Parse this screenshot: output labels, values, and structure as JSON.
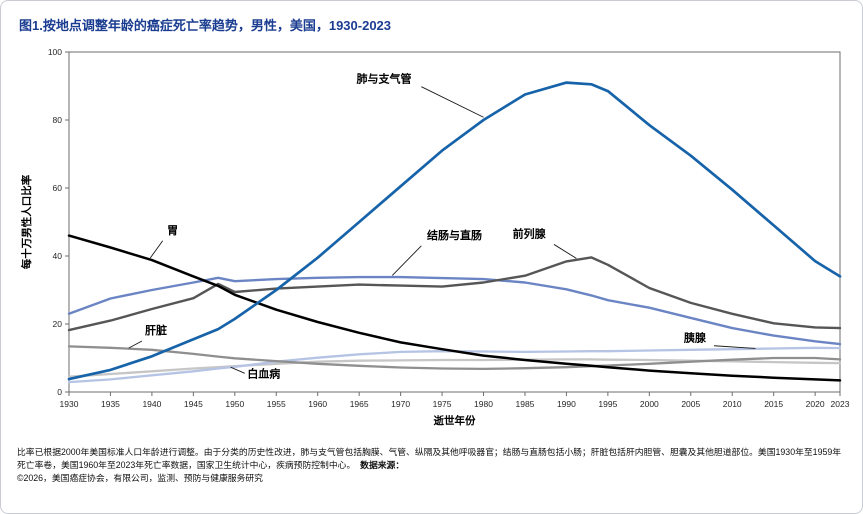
{
  "figure": {
    "title": "图1.按地点调整年龄的癌症死亡率趋势，男性，美国，1930-2023",
    "title_color": "#1b3d91"
  },
  "chart_data": {
    "type": "line",
    "title": "图1.按地点调整年龄的癌症死亡率趋势，男性，美国，1930-2023",
    "xlabel": "逝世年份",
    "ylabel": "每十万男性人口比率",
    "xlim": [
      1930,
      2023
    ],
    "ylim": [
      0,
      100
    ],
    "xticks": [
      1930,
      1935,
      1940,
      1945,
      1950,
      1955,
      1960,
      1965,
      1970,
      1975,
      1980,
      1985,
      1990,
      1995,
      2000,
      2005,
      2010,
      2015,
      2020,
      2023
    ],
    "yticks": [
      0,
      20,
      40,
      60,
      80,
      100
    ],
    "grid": false,
    "legend_position": "inline-annotations",
    "x": [
      1930,
      1935,
      1940,
      1945,
      1948,
      1950,
      1955,
      1960,
      1965,
      1970,
      1975,
      1980,
      1985,
      1990,
      1993,
      1995,
      2000,
      2005,
      2010,
      2015,
      2020,
      2023
    ],
    "series": [
      {
        "key": "leukemia",
        "name": "白血病",
        "color": "#c6c6c6",
        "width": 2.3,
        "values": [
          4.5,
          5.3,
          6.1,
          6.9,
          7.3,
          7.6,
          8.3,
          8.9,
          9.2,
          9.3,
          9.4,
          9.4,
          9.5,
          9.6,
          9.6,
          9.5,
          9.4,
          9.2,
          9.0,
          8.8,
          8.6,
          8.5
        ]
      },
      {
        "key": "pancreas",
        "name": "胰腺",
        "color": "#b5c4e4",
        "width": 2.3,
        "values": [
          2.9,
          3.7,
          4.9,
          6.1,
          6.9,
          7.4,
          8.9,
          10.1,
          11.1,
          11.8,
          12.0,
          11.9,
          11.8,
          11.9,
          12.0,
          12.0,
          12.2,
          12.4,
          12.6,
          12.8,
          13.0,
          12.9
        ]
      },
      {
        "key": "liver",
        "name": "肝脏",
        "color": "#8f8f8f",
        "width": 2.3,
        "values": [
          13.4,
          13.0,
          12.4,
          11.2,
          10.4,
          9.9,
          9.1,
          8.3,
          7.7,
          7.2,
          6.9,
          6.8,
          7.0,
          7.3,
          7.6,
          7.8,
          8.3,
          8.9,
          9.5,
          10.0,
          10.0,
          9.6
        ]
      },
      {
        "key": "colorectal",
        "name": "结肠与直肠",
        "color": "#6b85c4",
        "width": 2.4,
        "values": [
          23.0,
          27.5,
          30.0,
          32.2,
          33.6,
          32.6,
          33.2,
          33.6,
          33.8,
          33.8,
          33.5,
          33.2,
          32.2,
          30.2,
          28.4,
          27.0,
          24.8,
          21.8,
          18.8,
          16.6,
          14.9,
          14.1
        ]
      },
      {
        "key": "prostate",
        "name": "前列腺",
        "color": "#565656",
        "width": 2.4,
        "values": [
          18.2,
          21.0,
          24.4,
          27.6,
          31.8,
          29.4,
          30.4,
          31.0,
          31.6,
          31.3,
          31.0,
          32.2,
          34.2,
          38.4,
          39.6,
          37.4,
          30.6,
          26.2,
          23.0,
          20.2,
          19.0,
          18.8
        ]
      },
      {
        "key": "stomach",
        "name": "胃",
        "color": "#000000",
        "width": 2.5,
        "values": [
          46.0,
          42.5,
          38.8,
          34.0,
          31.2,
          28.6,
          24.2,
          20.6,
          17.4,
          14.6,
          12.6,
          10.7,
          9.4,
          8.3,
          7.7,
          7.3,
          6.3,
          5.5,
          4.8,
          4.2,
          3.7,
          3.4
        ]
      },
      {
        "key": "lung",
        "name": "肺与支气管",
        "color": "#1663a9",
        "width": 2.7,
        "values": [
          3.8,
          6.5,
          10.5,
          15.5,
          18.5,
          21.5,
          30.0,
          39.5,
          50.0,
          60.5,
          71.0,
          80.0,
          87.5,
          91.0,
          90.5,
          88.5,
          78.5,
          69.5,
          59.5,
          49.0,
          38.5,
          34.0
        ]
      }
    ],
    "annotations": [
      {
        "key": "lung",
        "text": "肺与支气管",
        "pos": [
          1968,
          91
        ],
        "leader": [
          1972.5,
          89.8,
          1980,
          80.8
        ]
      },
      {
        "key": "stomach",
        "text": "胃",
        "pos": [
          1942.5,
          46.5
        ],
        "leader": [
          1941.3,
          44.5,
          1939.8,
          39.4
        ]
      },
      {
        "key": "colorectal",
        "text": "结肠与直肠",
        "pos": [
          1976.5,
          45
        ],
        "leader": [
          1972.5,
          43,
          1969,
          34.3
        ]
      },
      {
        "key": "prostate",
        "text": "前列腺",
        "pos": [
          1985.5,
          45.5
        ],
        "leader": [
          1988.5,
          43.4,
          1991.2,
          39.3
        ]
      },
      {
        "key": "liver",
        "text": "肝脏",
        "pos": [
          1940.5,
          17
        ],
        "leader": [
          1938.8,
          15,
          1937.2,
          12.9
        ]
      },
      {
        "key": "leukemia",
        "text": "白血病",
        "pos": [
          1953.5,
          4.2
        ],
        "leader": [
          1951.2,
          5.5,
          1949.5,
          7.3
        ]
      },
      {
        "key": "pancreas",
        "text": "胰腺",
        "pos": [
          2005.5,
          14.8
        ],
        "leader": [
          2007.8,
          13.6,
          2012.8,
          12.8
        ]
      }
    ]
  },
  "footnote": {
    "text": "比率已根据2000年美国标准人口年龄进行调整。由于分类的历史性改进，肺与支气管包括胸膜、气管、纵隔及其他呼吸器官；结肠与直肠包括小肠；肝脏包括肝内胆管、胆囊及其他胆道部位。美国1930年至1959年死亡率卷，美国1960年至2023年死亡率数据，国家卫生统计中心，疾病预防控制中心。",
    "source_label": "数据来源：",
    "copyright": "©2026，美国癌症协会，有限公司，监测、预防与健康服务研究"
  }
}
